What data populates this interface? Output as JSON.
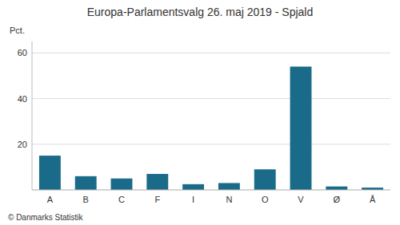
{
  "chart_data": {
    "type": "bar",
    "title": "Europa-Parlamentsvalg 26. maj 2019 - Spjald",
    "ylabel": "Pct.",
    "footer": "© Danmarks Statistik",
    "categories": [
      "A",
      "B",
      "C",
      "F",
      "I",
      "N",
      "O",
      "V",
      "Ø",
      "Å"
    ],
    "values": [
      15.0,
      6.0,
      5.0,
      7.0,
      2.5,
      3.0,
      9.0,
      54.0,
      1.5,
      1.0
    ],
    "color": "#1a6b8a",
    "ylim": [
      0,
      65
    ],
    "yticks": [
      20,
      40,
      60
    ],
    "grid": true
  }
}
